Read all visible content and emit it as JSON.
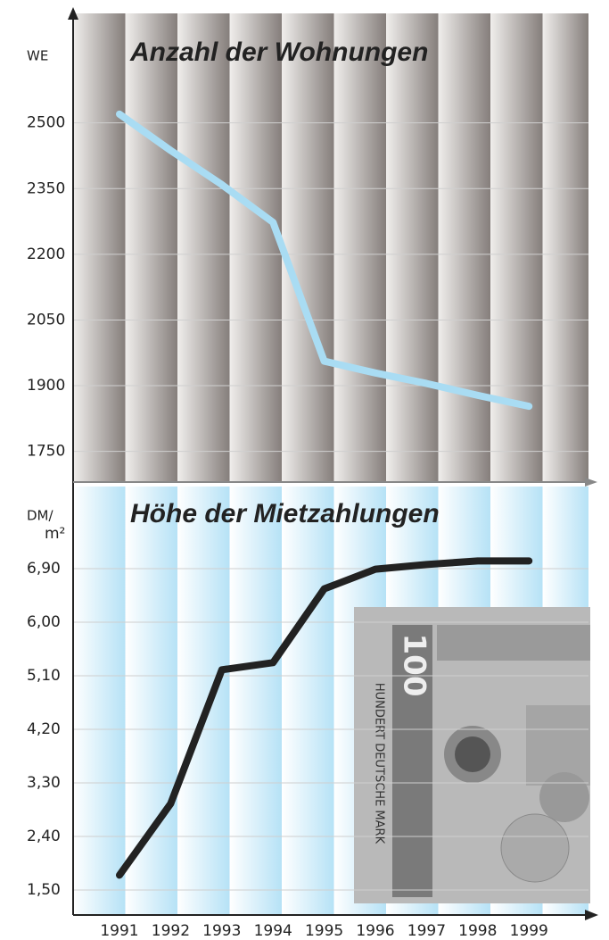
{
  "chart_data": [
    {
      "type": "line",
      "title": "Anzahl der Wohnungen",
      "y_unit": "WE",
      "series": [
        {
          "color": "#a9dcf3",
          "values": [
            2520,
            2437,
            2359,
            2273,
            1956,
            1929,
            1905,
            1878,
            1853
          ]
        }
      ],
      "ylim": [
        1680,
        2750
      ],
      "yticks": [
        1750,
        1900,
        2050,
        2200,
        2350,
        2500
      ],
      "grid": true
    },
    {
      "type": "line",
      "title": "Höhe der Mietzahlungen",
      "y_unit": "DM/",
      "y_unit_sub": "m²",
      "categories": [
        "1991",
        "1992",
        "1993",
        "1994",
        "1995",
        "1996",
        "1997",
        "1998",
        "1999"
      ],
      "series": [
        {
          "color": "#222222",
          "values": [
            1.75,
            2.95,
            5.2,
            5.32,
            6.56,
            6.89,
            6.97,
            7.03,
            7.03
          ]
        }
      ],
      "ylim": [
        1.08,
        8.28
      ],
      "yticks": [
        {
          "value": 1.5,
          "label": "1,50"
        },
        {
          "value": 2.4,
          "label": "2,40"
        },
        {
          "value": 3.3,
          "label": "3,30"
        },
        {
          "value": 4.2,
          "label": "4,20"
        },
        {
          "value": 5.1,
          "label": "5,10"
        },
        {
          "value": 6.0,
          "label": "6,00"
        },
        {
          "value": 6.9,
          "label": "6,90"
        }
      ],
      "grid": true
    }
  ],
  "banknote": {
    "denomination": "100",
    "text": "HUNDERT DEUTSCHE MARK"
  }
}
